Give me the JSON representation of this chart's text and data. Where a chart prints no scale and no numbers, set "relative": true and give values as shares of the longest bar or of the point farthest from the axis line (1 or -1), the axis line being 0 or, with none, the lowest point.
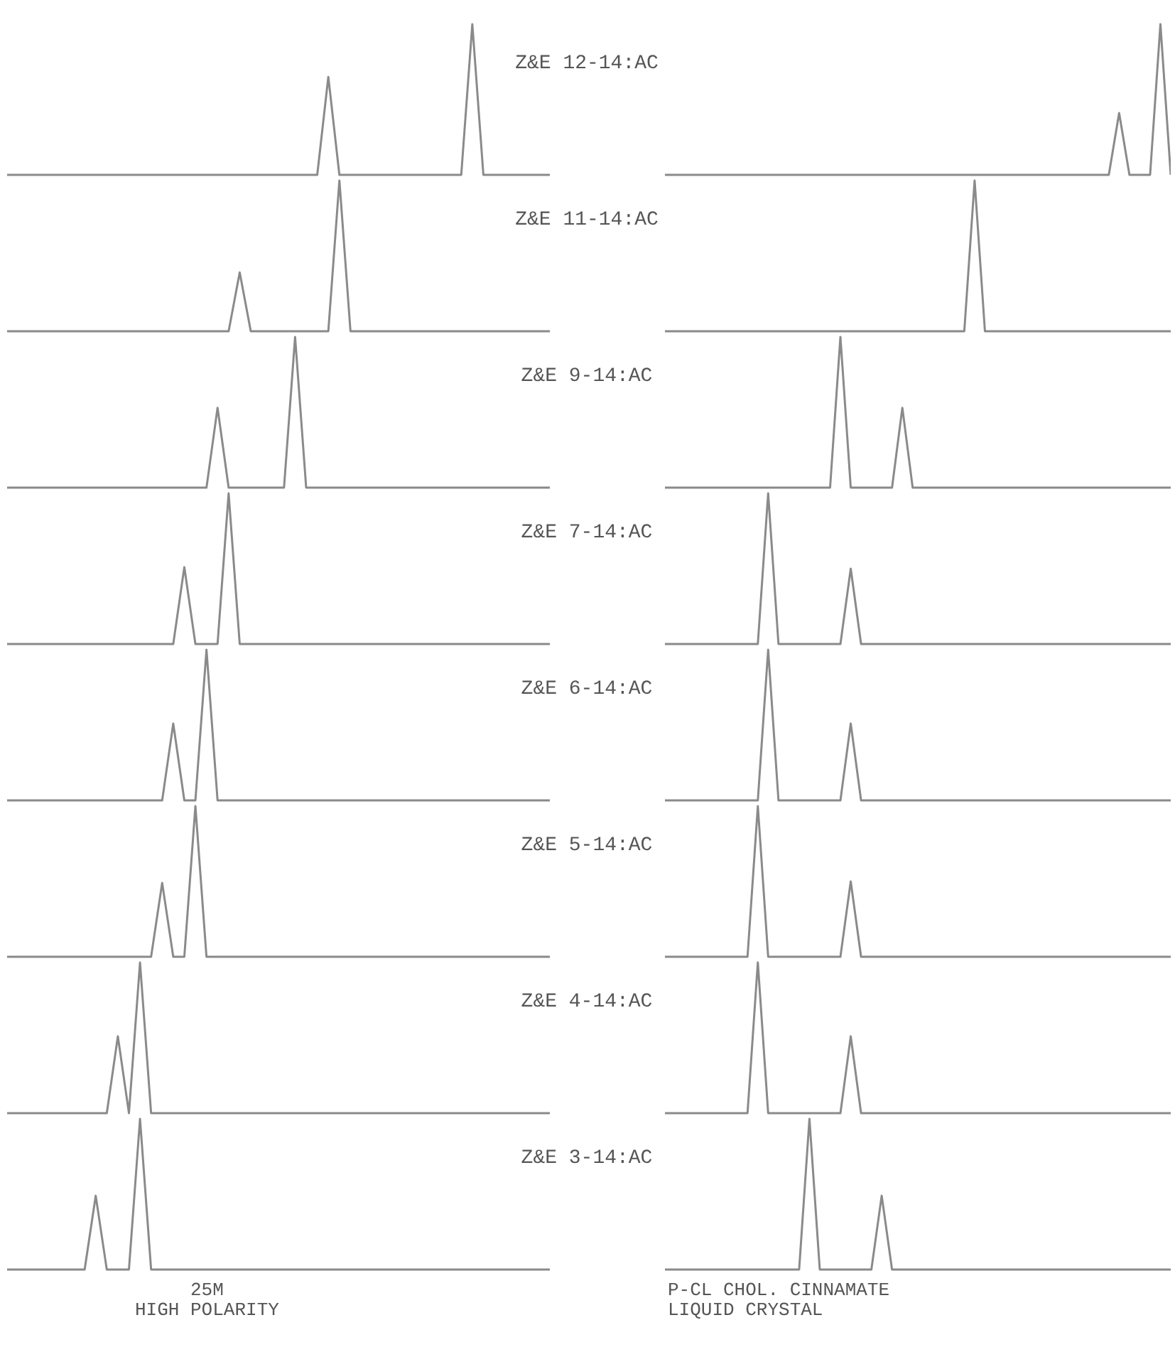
{
  "chart_data": [
    {
      "type": "line",
      "title": "Z&E 12-14:AC",
      "relative": true,
      "marker": "none",
      "categories": [
        null,
        null,
        null,
        null,
        null,
        null,
        null,
        null,
        null,
        null,
        null,
        null,
        null,
        null,
        null,
        null,
        null,
        null,
        null,
        null,
        null,
        null,
        null,
        null,
        null,
        null,
        null,
        null,
        null,
        null,
        null,
        null,
        null,
        null,
        null,
        null,
        null,
        null,
        null,
        null,
        null,
        null,
        null,
        null,
        null,
        null,
        null,
        null,
        null,
        null
      ],
      "series": [
        {
          "color": "#8a8a8a",
          "values": [
            0,
            0,
            0,
            0,
            0,
            0,
            0,
            0,
            0,
            0,
            0,
            0,
            0,
            0,
            0,
            0,
            0,
            0,
            0,
            0,
            0,
            0,
            0,
            0,
            0,
            0,
            0,
            0,
            0,
            0.65,
            0,
            0,
            0,
            0,
            0,
            0,
            0,
            0,
            0,
            0,
            0,
            0,
            1,
            0,
            0,
            0,
            0,
            0,
            0,
            0
          ]
        }
      ]
    },
    {
      "type": "line",
      "relative": true,
      "marker": "none",
      "categories": [
        null,
        null,
        null,
        null,
        null,
        null,
        null,
        null,
        null,
        null,
        null,
        null,
        null,
        null,
        null,
        null,
        null,
        null,
        null,
        null,
        null,
        null,
        null,
        null,
        null,
        null,
        null,
        null,
        null,
        null,
        null,
        null,
        null,
        null,
        null,
        null,
        null,
        null,
        null,
        null,
        null,
        null,
        null,
        null,
        null,
        null,
        null,
        null,
        null,
        null
      ],
      "series": [
        {
          "color": "#8a8a8a",
          "values": [
            0,
            0,
            0,
            0,
            0,
            0,
            0,
            0,
            0,
            0,
            0,
            0,
            0,
            0,
            0,
            0,
            0,
            0,
            0,
            0,
            0,
            0,
            0,
            0,
            0,
            0,
            0,
            0,
            0,
            0,
            0,
            0,
            0,
            0,
            0,
            0,
            0,
            0,
            0,
            0,
            0,
            0,
            0,
            0,
            0.41,
            0,
            0,
            0,
            1,
            0
          ]
        }
      ]
    },
    {
      "type": "line",
      "title": "Z&E 11-14:AC",
      "relative": true,
      "marker": "none",
      "categories": [
        null,
        null,
        null,
        null,
        null,
        null,
        null,
        null,
        null,
        null,
        null,
        null,
        null,
        null,
        null,
        null,
        null,
        null,
        null,
        null,
        null,
        null,
        null,
        null,
        null,
        null,
        null,
        null,
        null,
        null,
        null,
        null,
        null,
        null,
        null,
        null,
        null,
        null,
        null,
        null,
        null,
        null,
        null,
        null,
        null,
        null,
        null,
        null,
        null,
        null
      ],
      "series": [
        {
          "color": "#8a8a8a",
          "values": [
            0,
            0,
            0,
            0,
            0,
            0,
            0,
            0,
            0,
            0,
            0,
            0,
            0,
            0,
            0,
            0,
            0,
            0,
            0,
            0,
            0,
            0.39,
            0,
            0,
            0,
            0,
            0,
            0,
            0,
            0,
            1,
            0,
            0,
            0,
            0,
            0,
            0,
            0,
            0,
            0,
            0,
            0,
            0,
            0,
            0,
            0,
            0,
            0,
            0,
            0
          ]
        }
      ]
    },
    {
      "type": "line",
      "relative": true,
      "marker": "none",
      "categories": [
        null,
        null,
        null,
        null,
        null,
        null,
        null,
        null,
        null,
        null,
        null,
        null,
        null,
        null,
        null,
        null,
        null,
        null,
        null,
        null,
        null,
        null,
        null,
        null,
        null,
        null,
        null,
        null,
        null,
        null,
        null,
        null,
        null,
        null,
        null,
        null,
        null,
        null,
        null,
        null,
        null,
        null,
        null,
        null,
        null,
        null,
        null,
        null,
        null,
        null
      ],
      "series": [
        {
          "color": "#8a8a8a",
          "values": [
            0,
            0,
            0,
            0,
            0,
            0,
            0,
            0,
            0,
            0,
            0,
            0,
            0,
            0,
            0,
            0,
            0,
            0,
            0,
            0,
            0,
            0,
            0,
            0,
            0,
            0,
            0,
            0,
            0,
            0,
            1,
            0,
            0,
            0,
            0,
            0,
            0,
            0,
            0,
            0,
            0,
            0,
            0,
            0,
            0,
            0,
            0,
            0,
            0,
            0
          ]
        }
      ]
    },
    {
      "type": "line",
      "title": "Z&E 9-14:AC",
      "relative": true,
      "marker": "none",
      "categories": [
        null,
        null,
        null,
        null,
        null,
        null,
        null,
        null,
        null,
        null,
        null,
        null,
        null,
        null,
        null,
        null,
        null,
        null,
        null,
        null,
        null,
        null,
        null,
        null,
        null,
        null,
        null,
        null,
        null,
        null,
        null,
        null,
        null,
        null,
        null,
        null,
        null,
        null,
        null,
        null,
        null,
        null,
        null,
        null,
        null,
        null,
        null,
        null,
        null,
        null
      ],
      "series": [
        {
          "color": "#8a8a8a",
          "values": [
            0,
            0,
            0,
            0,
            0,
            0,
            0,
            0,
            0,
            0,
            0,
            0,
            0,
            0,
            0,
            0,
            0,
            0,
            0,
            0.53,
            0,
            0,
            0,
            0,
            0,
            0,
            1,
            0,
            0,
            0,
            0,
            0,
            0,
            0,
            0,
            0,
            0,
            0,
            0,
            0,
            0,
            0,
            0,
            0,
            0,
            0,
            0,
            0,
            0,
            0
          ]
        }
      ]
    },
    {
      "type": "line",
      "relative": true,
      "marker": "none",
      "categories": [
        null,
        null,
        null,
        null,
        null,
        null,
        null,
        null,
        null,
        null,
        null,
        null,
        null,
        null,
        null,
        null,
        null,
        null,
        null,
        null,
        null,
        null,
        null,
        null,
        null,
        null,
        null,
        null,
        null,
        null,
        null,
        null,
        null,
        null,
        null,
        null,
        null,
        null,
        null,
        null,
        null,
        null,
        null,
        null,
        null,
        null,
        null,
        null,
        null,
        null
      ],
      "series": [
        {
          "color": "#8a8a8a",
          "values": [
            0,
            0,
            0,
            0,
            0,
            0,
            0,
            0,
            0,
            0,
            0,
            0,
            0,
            0,
            0,
            0,
            0,
            1,
            0,
            0,
            0,
            0,
            0,
            0.53,
            0,
            0,
            0,
            0,
            0,
            0,
            0,
            0,
            0,
            0,
            0,
            0,
            0,
            0,
            0,
            0,
            0,
            0,
            0,
            0,
            0,
            0,
            0,
            0,
            0,
            0
          ]
        }
      ]
    },
    {
      "type": "line",
      "title": "Z&E 7-14:AC",
      "relative": true,
      "marker": "none",
      "categories": [
        null,
        null,
        null,
        null,
        null,
        null,
        null,
        null,
        null,
        null,
        null,
        null,
        null,
        null,
        null,
        null,
        null,
        null,
        null,
        null,
        null,
        null,
        null,
        null,
        null,
        null,
        null,
        null,
        null,
        null,
        null,
        null,
        null,
        null,
        null,
        null,
        null,
        null,
        null,
        null,
        null,
        null,
        null,
        null,
        null,
        null,
        null,
        null,
        null,
        null
      ],
      "series": [
        {
          "color": "#8a8a8a",
          "values": [
            0,
            0,
            0,
            0,
            0,
            0,
            0,
            0,
            0,
            0,
            0,
            0,
            0,
            0,
            0,
            0,
            0.51,
            0,
            0,
            0,
            1,
            0,
            0,
            0,
            0,
            0,
            0,
            0,
            0,
            0,
            0,
            0,
            0,
            0,
            0,
            0,
            0,
            0,
            0,
            0,
            0,
            0,
            0,
            0,
            0,
            0,
            0,
            0,
            0,
            0
          ]
        }
      ]
    },
    {
      "type": "line",
      "relative": true,
      "marker": "none",
      "categories": [
        null,
        null,
        null,
        null,
        null,
        null,
        null,
        null,
        null,
        null,
        null,
        null,
        null,
        null,
        null,
        null,
        null,
        null,
        null,
        null,
        null,
        null,
        null,
        null,
        null,
        null,
        null,
        null,
        null,
        null,
        null,
        null,
        null,
        null,
        null,
        null,
        null,
        null,
        null,
        null,
        null,
        null,
        null,
        null,
        null,
        null,
        null,
        null,
        null,
        null
      ],
      "series": [
        {
          "color": "#8a8a8a",
          "values": [
            0,
            0,
            0,
            0,
            0,
            0,
            0,
            0,
            0,
            0,
            1,
            0,
            0,
            0,
            0,
            0,
            0,
            0,
            0.5,
            0,
            0,
            0,
            0,
            0,
            0,
            0,
            0,
            0,
            0,
            0,
            0,
            0,
            0,
            0,
            0,
            0,
            0,
            0,
            0,
            0,
            0,
            0,
            0,
            0,
            0,
            0,
            0,
            0,
            0,
            0
          ]
        }
      ]
    },
    {
      "type": "line",
      "title": "Z&E 6-14:AC",
      "relative": true,
      "marker": "none",
      "categories": [
        null,
        null,
        null,
        null,
        null,
        null,
        null,
        null,
        null,
        null,
        null,
        null,
        null,
        null,
        null,
        null,
        null,
        null,
        null,
        null,
        null,
        null,
        null,
        null,
        null,
        null,
        null,
        null,
        null,
        null,
        null,
        null,
        null,
        null,
        null,
        null,
        null,
        null,
        null,
        null,
        null,
        null,
        null,
        null,
        null,
        null,
        null,
        null,
        null,
        null
      ],
      "series": [
        {
          "color": "#8a8a8a",
          "values": [
            0,
            0,
            0,
            0,
            0,
            0,
            0,
            0,
            0,
            0,
            0,
            0,
            0,
            0,
            0,
            0.51,
            0,
            0,
            1,
            0,
            0,
            0,
            0,
            0,
            0,
            0,
            0,
            0,
            0,
            0,
            0,
            0,
            0,
            0,
            0,
            0,
            0,
            0,
            0,
            0,
            0,
            0,
            0,
            0,
            0,
            0,
            0,
            0,
            0,
            0
          ]
        }
      ]
    },
    {
      "type": "line",
      "relative": true,
      "marker": "none",
      "categories": [
        null,
        null,
        null,
        null,
        null,
        null,
        null,
        null,
        null,
        null,
        null,
        null,
        null,
        null,
        null,
        null,
        null,
        null,
        null,
        null,
        null,
        null,
        null,
        null,
        null,
        null,
        null,
        null,
        null,
        null,
        null,
        null,
        null,
        null,
        null,
        null,
        null,
        null,
        null,
        null,
        null,
        null,
        null,
        null,
        null,
        null,
        null,
        null,
        null,
        null
      ],
      "series": [
        {
          "color": "#8a8a8a",
          "values": [
            0,
            0,
            0,
            0,
            0,
            0,
            0,
            0,
            0,
            0,
            1,
            0,
            0,
            0,
            0,
            0,
            0,
            0,
            0.51,
            0,
            0,
            0,
            0,
            0,
            0,
            0,
            0,
            0,
            0,
            0,
            0,
            0,
            0,
            0,
            0,
            0,
            0,
            0,
            0,
            0,
            0,
            0,
            0,
            0,
            0,
            0,
            0,
            0,
            0,
            0
          ]
        }
      ]
    },
    {
      "type": "line",
      "title": "Z&E 5-14:AC",
      "relative": true,
      "marker": "none",
      "categories": [
        null,
        null,
        null,
        null,
        null,
        null,
        null,
        null,
        null,
        null,
        null,
        null,
        null,
        null,
        null,
        null,
        null,
        null,
        null,
        null,
        null,
        null,
        null,
        null,
        null,
        null,
        null,
        null,
        null,
        null,
        null,
        null,
        null,
        null,
        null,
        null,
        null,
        null,
        null,
        null,
        null,
        null,
        null,
        null,
        null,
        null,
        null,
        null,
        null,
        null
      ],
      "series": [
        {
          "color": "#8a8a8a",
          "values": [
            0,
            0,
            0,
            0,
            0,
            0,
            0,
            0,
            0,
            0,
            0,
            0,
            0,
            0,
            0.49,
            0,
            0,
            1,
            0,
            0,
            0,
            0,
            0,
            0,
            0,
            0,
            0,
            0,
            0,
            0,
            0,
            0,
            0,
            0,
            0,
            0,
            0,
            0,
            0,
            0,
            0,
            0,
            0,
            0,
            0,
            0,
            0,
            0,
            0,
            0
          ]
        }
      ]
    },
    {
      "type": "line",
      "relative": true,
      "marker": "none",
      "categories": [
        null,
        null,
        null,
        null,
        null,
        null,
        null,
        null,
        null,
        null,
        null,
        null,
        null,
        null,
        null,
        null,
        null,
        null,
        null,
        null,
        null,
        null,
        null,
        null,
        null,
        null,
        null,
        null,
        null,
        null,
        null,
        null,
        null,
        null,
        null,
        null,
        null,
        null,
        null,
        null,
        null,
        null,
        null,
        null,
        null,
        null,
        null,
        null,
        null,
        null
      ],
      "series": [
        {
          "color": "#8a8a8a",
          "values": [
            0,
            0,
            0,
            0,
            0,
            0,
            0,
            0,
            0,
            1,
            0,
            0,
            0,
            0,
            0,
            0,
            0,
            0,
            0.5,
            0,
            0,
            0,
            0,
            0,
            0,
            0,
            0,
            0,
            0,
            0,
            0,
            0,
            0,
            0,
            0,
            0,
            0,
            0,
            0,
            0,
            0,
            0,
            0,
            0,
            0,
            0,
            0,
            0,
            0,
            0
          ]
        }
      ]
    },
    {
      "type": "line",
      "title": "Z&E 4-14:AC",
      "relative": true,
      "marker": "none",
      "categories": [
        null,
        null,
        null,
        null,
        null,
        null,
        null,
        null,
        null,
        null,
        null,
        null,
        null,
        null,
        null,
        null,
        null,
        null,
        null,
        null,
        null,
        null,
        null,
        null,
        null,
        null,
        null,
        null,
        null,
        null,
        null,
        null,
        null,
        null,
        null,
        null,
        null,
        null,
        null,
        null,
        null,
        null,
        null,
        null,
        null,
        null,
        null,
        null,
        null,
        null
      ],
      "series": [
        {
          "color": "#8a8a8a",
          "values": [
            0,
            0,
            0,
            0,
            0,
            0,
            0,
            0,
            0,
            0,
            0.51,
            0,
            1,
            0,
            0,
            0,
            0,
            0,
            0,
            0,
            0,
            0,
            0,
            0,
            0,
            0,
            0,
            0,
            0,
            0,
            0,
            0,
            0,
            0,
            0,
            0,
            0,
            0,
            0,
            0,
            0,
            0,
            0,
            0,
            0,
            0,
            0,
            0,
            0,
            0
          ]
        }
      ]
    },
    {
      "type": "line",
      "relative": true,
      "marker": "none",
      "categories": [
        null,
        null,
        null,
        null,
        null,
        null,
        null,
        null,
        null,
        null,
        null,
        null,
        null,
        null,
        null,
        null,
        null,
        null,
        null,
        null,
        null,
        null,
        null,
        null,
        null,
        null,
        null,
        null,
        null,
        null,
        null,
        null,
        null,
        null,
        null,
        null,
        null,
        null,
        null,
        null,
        null,
        null,
        null,
        null,
        null,
        null,
        null,
        null,
        null,
        null
      ],
      "series": [
        {
          "color": "#8a8a8a",
          "values": [
            0,
            0,
            0,
            0,
            0,
            0,
            0,
            0,
            0,
            1,
            0,
            0,
            0,
            0,
            0,
            0,
            0,
            0,
            0.51,
            0,
            0,
            0,
            0,
            0,
            0,
            0,
            0,
            0,
            0,
            0,
            0,
            0,
            0,
            0,
            0,
            0,
            0,
            0,
            0,
            0,
            0,
            0,
            0,
            0,
            0,
            0,
            0,
            0,
            0,
            0
          ]
        }
      ]
    },
    {
      "type": "line",
      "title": "Z&E 3-14:AC",
      "relative": true,
      "marker": "none",
      "annotations": [
        "25M",
        "HIGH POLARITY"
      ],
      "categories": [
        null,
        null,
        null,
        null,
        null,
        null,
        null,
        null,
        null,
        null,
        null,
        null,
        null,
        null,
        null,
        null,
        null,
        null,
        null,
        null,
        null,
        null,
        null,
        null,
        null,
        null,
        null,
        null,
        null,
        null,
        null,
        null,
        null,
        null,
        null,
        null,
        null,
        null,
        null,
        null,
        null,
        null,
        null,
        null,
        null,
        null,
        null,
        null,
        null,
        null
      ],
      "series": [
        {
          "color": "#8a8a8a",
          "values": [
            0,
            0,
            0,
            0,
            0,
            0,
            0,
            0,
            0.49,
            0,
            0,
            0,
            1,
            0,
            0,
            0,
            0,
            0,
            0,
            0,
            0,
            0,
            0,
            0,
            0,
            0,
            0,
            0,
            0,
            0,
            0,
            0,
            0,
            0,
            0,
            0,
            0,
            0,
            0,
            0,
            0,
            0,
            0,
            0,
            0,
            0,
            0,
            0,
            0,
            0
          ]
        }
      ]
    },
    {
      "type": "line",
      "relative": true,
      "marker": "none",
      "annotations": [
        "P-CL CHOL. CINNAMATE",
        "LIQUID CRYSTAL"
      ],
      "categories": [
        null,
        null,
        null,
        null,
        null,
        null,
        null,
        null,
        null,
        null,
        null,
        null,
        null,
        null,
        null,
        null,
        null,
        null,
        null,
        null,
        null,
        null,
        null,
        null,
        null,
        null,
        null,
        null,
        null,
        null,
        null,
        null,
        null,
        null,
        null,
        null,
        null,
        null,
        null,
        null,
        null,
        null,
        null,
        null,
        null,
        null,
        null,
        null,
        null,
        null
      ],
      "series": [
        {
          "color": "#8a8a8a",
          "values": [
            0,
            0,
            0,
            0,
            0,
            0,
            0,
            0,
            0,
            0,
            0,
            0,
            0,
            0,
            1,
            0,
            0,
            0,
            0,
            0,
            0,
            0.49,
            0,
            0,
            0,
            0,
            0,
            0,
            0,
            0,
            0,
            0,
            0,
            0,
            0,
            0,
            0,
            0,
            0,
            0,
            0,
            0,
            0,
            0,
            0,
            0,
            0,
            0,
            0,
            0
          ]
        }
      ]
    }
  ]
}
